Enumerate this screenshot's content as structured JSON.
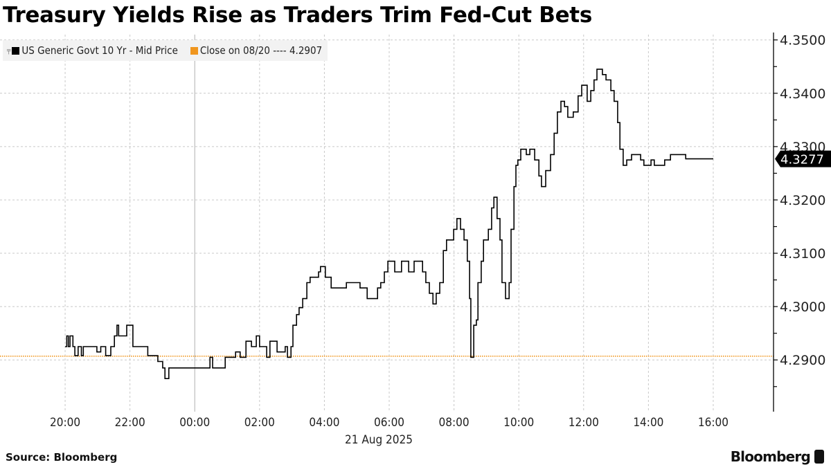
{
  "title": "Treasury Yields Rise as Traders Trim Fed-Cut Bets",
  "legend": {
    "series_label": "US Generic Govt 10 Yr - Mid Price",
    "close_label": "Close on 08/20 ---- 4.2907"
  },
  "source": "Source: Bloomberg",
  "brand": "Bloomberg",
  "colors": {
    "line": "#000000",
    "close": "#f0961e",
    "grid": "#c8c8c8"
  },
  "chart_data": {
    "type": "line",
    "title": "Treasury Yields Rise as Traders Trim Fed-Cut Bets",
    "xlabel": "21 Aug 2025",
    "ylabel": "",
    "x_unit": "hours since 20:00 on 08/20",
    "xlim": [
      -2.01,
      21.86
    ],
    "ylim": [
      4.2803,
      4.351
    ],
    "x_ticks": [
      0,
      2,
      4,
      6,
      8,
      10,
      12,
      14,
      16,
      18,
      20
    ],
    "x_tick_labels": [
      "20:00",
      "22:00",
      "00:00",
      "02:00",
      "04:00",
      "06:00",
      "08:00",
      "10:00",
      "12:00",
      "14:00",
      "16:00"
    ],
    "y_ticks": [
      4.29,
      4.3,
      4.31,
      4.32,
      4.33,
      4.34,
      4.35
    ],
    "y_tick_labels": [
      "4.2900",
      "4.3000",
      "4.3100",
      "4.3200",
      "4.3300",
      "4.3400",
      "4.3500"
    ],
    "grid": true,
    "legend_position": "top-left",
    "close_value": 4.2907,
    "last_value": 4.3277,
    "last_value_label": "4.3277",
    "series": [
      {
        "name": "US Generic Govt 10 Yr - Mid Price",
        "points": [
          [
            0,
            4.2925
          ],
          [
            0.05,
            4.2945
          ],
          [
            0.1,
            4.2925
          ],
          [
            0.15,
            4.2945
          ],
          [
            0.24,
            4.2925
          ],
          [
            0.3,
            4.2908
          ],
          [
            0.4,
            4.2925
          ],
          [
            0.5,
            4.2908
          ],
          [
            0.56,
            4.2925
          ],
          [
            0.98,
            4.2915
          ],
          [
            1.1,
            4.2925
          ],
          [
            1.25,
            4.2908
          ],
          [
            1.41,
            4.2925
          ],
          [
            1.52,
            4.2945
          ],
          [
            1.6,
            4.2965
          ],
          [
            1.65,
            4.2945
          ],
          [
            1.73,
            4.2945
          ],
          [
            1.9,
            4.2965
          ],
          [
            2.09,
            4.2925
          ],
          [
            2.48,
            4.2925
          ],
          [
            2.55,
            4.2908
          ],
          [
            2.86,
            4.2897
          ],
          [
            3.01,
            4.2885
          ],
          [
            3.08,
            4.2865
          ],
          [
            3.2,
            4.2885
          ],
          [
            4.4,
            4.2885
          ],
          [
            4.47,
            4.2905
          ],
          [
            4.55,
            4.2885
          ],
          [
            4.94,
            4.2905
          ],
          [
            5.26,
            4.2915
          ],
          [
            5.4,
            4.2905
          ],
          [
            5.58,
            4.2935
          ],
          [
            5.75,
            4.2925
          ],
          [
            5.9,
            4.2945
          ],
          [
            6.0,
            4.2925
          ],
          [
            6.22,
            4.2905
          ],
          [
            6.32,
            4.2935
          ],
          [
            6.54,
            4.2915
          ],
          [
            6.79,
            4.2925
          ],
          [
            6.86,
            4.2905
          ],
          [
            6.97,
            4.2925
          ],
          [
            7.03,
            4.2965
          ],
          [
            7.14,
            4.2985
          ],
          [
            7.22,
            4.2998
          ],
          [
            7.33,
            4.3015
          ],
          [
            7.46,
            4.3045
          ],
          [
            7.56,
            4.3055
          ],
          [
            7.82,
            4.3065
          ],
          [
            7.88,
            4.3075
          ],
          [
            8.03,
            4.3055
          ],
          [
            8.21,
            4.3035
          ],
          [
            8.68,
            4.3045
          ],
          [
            9.1,
            4.3035
          ],
          [
            9.32,
            4.3015
          ],
          [
            9.64,
            4.3035
          ],
          [
            9.74,
            4.3045
          ],
          [
            9.85,
            4.3065
          ],
          [
            9.96,
            4.3085
          ],
          [
            10.17,
            4.3065
          ],
          [
            10.38,
            4.3085
          ],
          [
            10.6,
            4.3065
          ],
          [
            10.77,
            4.3085
          ],
          [
            11.03,
            4.3065
          ],
          [
            11.13,
            4.3045
          ],
          [
            11.24,
            4.3025
          ],
          [
            11.35,
            4.3005
          ],
          [
            11.45,
            4.3025
          ],
          [
            11.56,
            4.3045
          ],
          [
            11.67,
            4.3105
          ],
          [
            11.77,
            4.3125
          ],
          [
            11.99,
            4.3145
          ],
          [
            12.09,
            4.3165
          ],
          [
            12.2,
            4.3145
          ],
          [
            12.31,
            4.3125
          ],
          [
            12.41,
            4.3085
          ],
          [
            12.48,
            4.3015
          ],
          [
            12.52,
            4.2905
          ],
          [
            12.61,
            4.2965
          ],
          [
            12.69,
            4.2975
          ],
          [
            12.74,
            4.3045
          ],
          [
            12.84,
            4.3085
          ],
          [
            12.91,
            4.3125
          ],
          [
            13.06,
            4.3145
          ],
          [
            13.16,
            4.3185
          ],
          [
            13.23,
            4.3205
          ],
          [
            13.33,
            4.3165
          ],
          [
            13.42,
            4.3125
          ],
          [
            13.48,
            4.3045
          ],
          [
            13.59,
            4.3015
          ],
          [
            13.7,
            4.3045
          ],
          [
            13.76,
            4.3145
          ],
          [
            13.85,
            4.3225
          ],
          [
            13.91,
            4.3265
          ],
          [
            13.97,
            4.3275
          ],
          [
            14.06,
            4.3295
          ],
          [
            14.23,
            4.3285
          ],
          [
            14.34,
            4.3295
          ],
          [
            14.49,
            4.3275
          ],
          [
            14.62,
            4.3245
          ],
          [
            14.7,
            4.3225
          ],
          [
            14.83,
            4.3255
          ],
          [
            14.98,
            4.3285
          ],
          [
            15.09,
            4.3325
          ],
          [
            15.19,
            4.3365
          ],
          [
            15.3,
            4.3385
          ],
          [
            15.41,
            4.3375
          ],
          [
            15.51,
            4.3355
          ],
          [
            15.68,
            4.3365
          ],
          [
            15.83,
            4.3395
          ],
          [
            15.94,
            4.3415
          ],
          [
            16.11,
            4.3385
          ],
          [
            16.22,
            4.3405
          ],
          [
            16.32,
            4.3425
          ],
          [
            16.41,
            4.3445
          ],
          [
            16.58,
            4.3435
          ],
          [
            16.69,
            4.3425
          ],
          [
            16.84,
            4.3405
          ],
          [
            16.94,
            4.3385
          ],
          [
            17.05,
            4.3345
          ],
          [
            17.12,
            4.3295
          ],
          [
            17.22,
            4.3265
          ],
          [
            17.33,
            4.3275
          ],
          [
            17.48,
            4.3285
          ],
          [
            17.61,
            4.3285
          ],
          [
            17.76,
            4.3275
          ],
          [
            17.86,
            4.3265
          ],
          [
            18.08,
            4.3275
          ],
          [
            18.18,
            4.3265
          ],
          [
            18.5,
            4.3275
          ],
          [
            18.68,
            4.3285
          ],
          [
            18.82,
            4.3285
          ],
          [
            19.15,
            4.3277
          ],
          [
            20.0,
            4.3277
          ]
        ]
      }
    ]
  }
}
